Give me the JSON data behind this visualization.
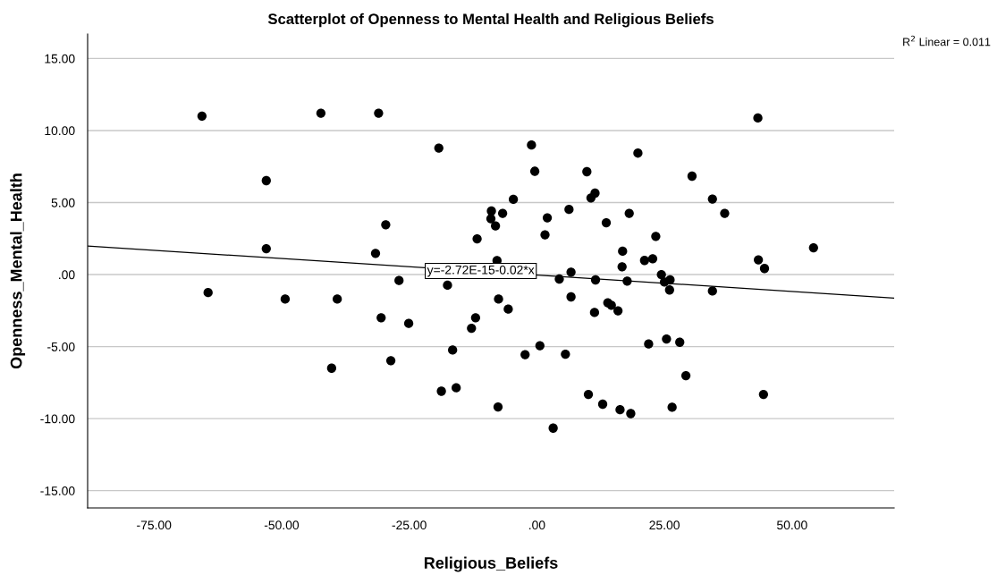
{
  "chart_data": {
    "type": "scatter",
    "title": "Scatterplot of Openness to Mental Health and Religious Beliefs",
    "xlabel": "Religious_Beliefs",
    "ylabel": "Openness_Mental_Health",
    "xlim": [
      -88,
      70
    ],
    "ylim": [
      -16.2,
      16.7
    ],
    "xticks": [
      {
        "value": -75,
        "label": "-75.00"
      },
      {
        "value": -50,
        "label": "-50.00"
      },
      {
        "value": -25,
        "label": "-25.00"
      },
      {
        "value": 0,
        "label": ".00"
      },
      {
        "value": 25,
        "label": "25.00"
      },
      {
        "value": 50,
        "label": "50.00"
      }
    ],
    "yticks": [
      {
        "value": -15,
        "label": "-15.00"
      },
      {
        "value": -10,
        "label": "-10.00"
      },
      {
        "value": -5,
        "label": "-5.00"
      },
      {
        "value": 0,
        "label": ".00"
      },
      {
        "value": 5,
        "label": "5.00"
      },
      {
        "value": 10,
        "label": "10.00"
      },
      {
        "value": 15,
        "label": "15.00"
      }
    ],
    "grid": "y",
    "marker": "circle",
    "legend": false,
    "series": [
      {
        "color": "#000000",
        "x": [
          -65.6,
          -64.4,
          -53.0,
          -53.0,
          -49.3,
          -42.3,
          -39.1,
          -40.2,
          -31.0,
          -29.6,
          -31.6,
          -30.5,
          -27.0,
          -25.1,
          -28.6,
          -19.2,
          -17.5,
          -18.7,
          -15.8,
          -16.5,
          -12.8,
          -12.0,
          -11.7,
          -7.6,
          -7.5,
          -5.6,
          -2.3,
          0.6,
          3.2,
          -8.9,
          -9.0,
          -8.1,
          -6.7,
          -4.6,
          -1.05,
          -0.4,
          2.05,
          1.6,
          -7.8,
          43.3,
          19.8,
          9.8,
          30.4,
          11.4,
          10.6,
          34.4,
          6.3,
          18.1,
          36.8,
          13.6,
          23.3,
          16.8,
          54.2,
          21.1,
          22.7,
          43.4,
          44.6,
          16.7,
          6.7,
          4.4,
          11.5,
          17.7,
          24.4,
          25.0,
          26.1,
          26.0,
          34.4,
          6.7,
          11.3,
          13.9,
          14.6,
          15.9,
          5.6,
          21.9,
          25.4,
          28.0,
          29.2,
          10.1,
          12.9,
          16.3,
          18.4,
          26.5,
          44.4
        ],
        "values": [
          11.0,
          -1.25,
          6.52,
          1.8,
          -1.7,
          11.2,
          -1.7,
          -6.5,
          11.2,
          3.46,
          1.47,
          -3.0,
          -0.41,
          -3.39,
          -5.98,
          8.78,
          -0.74,
          -8.1,
          -7.86,
          -5.24,
          -3.73,
          -3.0,
          2.48,
          -9.19,
          -1.7,
          -2.4,
          -5.56,
          -4.94,
          -10.66,
          4.41,
          3.88,
          3.38,
          4.25,
          5.22,
          8.99,
          7.17,
          3.94,
          2.76,
          0.97,
          10.87,
          8.43,
          7.14,
          6.83,
          5.65,
          5.32,
          5.24,
          4.52,
          4.25,
          4.25,
          3.6,
          2.65,
          1.62,
          1.86,
          0.98,
          1.1,
          1.02,
          0.42,
          0.54,
          0.17,
          -0.31,
          -0.37,
          -0.45,
          0.0,
          -0.52,
          -0.37,
          -1.07,
          -1.14,
          -1.55,
          -2.63,
          -1.96,
          -2.13,
          -2.52,
          -5.53,
          -4.82,
          -4.47,
          -4.7,
          -7.02,
          -8.32,
          -9.0,
          -9.38,
          -9.65,
          -9.21,
          -8.32
        ]
      },
      {
        "type": "line",
        "color": "#000000",
        "marker": "none",
        "x": [
          -88,
          70
        ],
        "values": [
          1.98,
          -1.63
        ]
      }
    ],
    "annotations": [
      {
        "text": "y=-2.72E-15-0.02*x",
        "x": -21.5,
        "y": 0.25
      },
      "R$^{2}$ Linear = 0.011"
    ]
  }
}
